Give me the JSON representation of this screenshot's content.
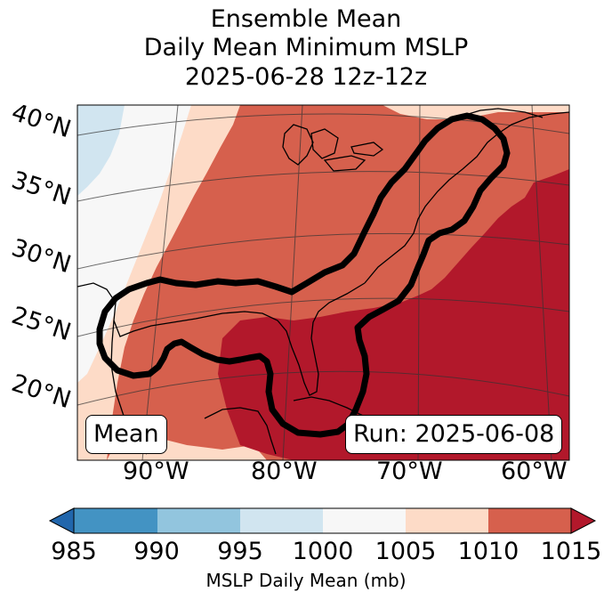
{
  "title": {
    "line1": "Ensemble Mean",
    "line2": "Daily Mean Minimum MSLP",
    "line3": "2025-06-28 12z-12z"
  },
  "lat_labels": [
    "40°N",
    "35°N",
    "30°N",
    "25°N",
    "20°N"
  ],
  "lon_labels": [
    "90°W",
    "80°W",
    "70°W",
    "60°W"
  ],
  "mean_label": "Mean",
  "run_label": "Run: 2025-06-08",
  "colorbar": {
    "ticks": [
      "985",
      "990",
      "995",
      "1000",
      "1005",
      "1010",
      "1015"
    ],
    "label": "MSLP Daily Mean (mb)",
    "colors": [
      "#2166ac",
      "#4393c3",
      "#92c5de",
      "#d1e5f0",
      "#f7f7f7",
      "#fddbc7",
      "#d6604d",
      "#b2182b"
    ]
  },
  "colors": {
    "c990_995": "#d1e5f0",
    "c995_1000": "#f7f7f7",
    "c1000_1005": "#fddbc7",
    "c1005_1010": "#d6604d",
    "c1010_1015": "#b2182b",
    "contour": "#000000"
  }
}
